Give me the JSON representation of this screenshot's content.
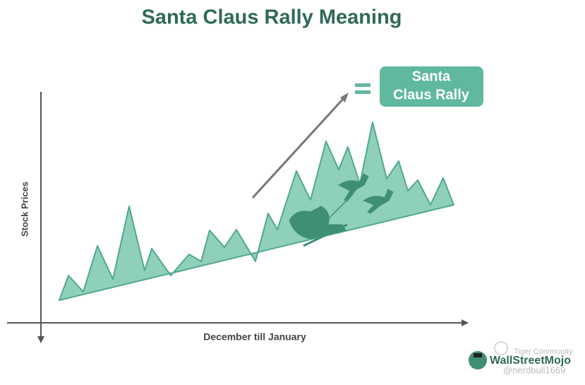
{
  "title": "Santa Claus Rally Meaning",
  "result_box": {
    "lines": [
      "Santa",
      "Claus Rally"
    ]
  },
  "axes": {
    "y_label": "Stock Prices",
    "x_label": "December till January"
  },
  "logo": {
    "brand": "WallStreetMojo"
  },
  "watermark": {
    "source": "Tiger Community",
    "handle": "@nerdbull1669"
  }
}
